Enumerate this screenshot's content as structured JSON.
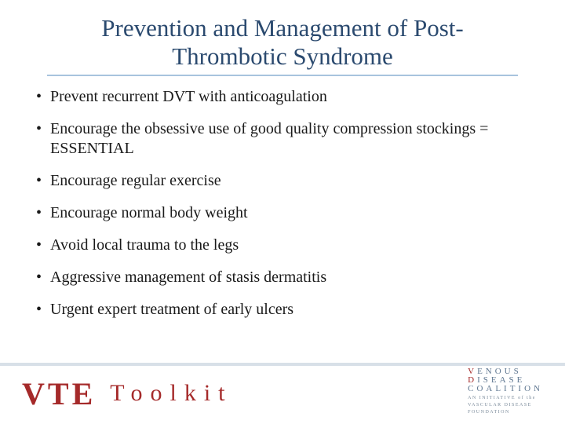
{
  "title": "Prevention and Management of Post-Thrombotic Syndrome",
  "title_color": "#2b4a6f",
  "title_fontsize": 31,
  "underline_color": "#a8c4de",
  "bullets": [
    "Prevent recurrent DVT with anticoagulation",
    "Encourage the obsessive use of good quality compression stockings = ESSENTIAL",
    "Encourage regular exercise",
    "Encourage normal body weight",
    "Avoid local trauma to the legs",
    "Aggressive management of stasis dermatitis",
    "Urgent expert treatment of early ulcers"
  ],
  "bullet_color": "#1a1a1a",
  "bullet_fontsize": 20,
  "footer": {
    "vte": "VTE",
    "toolkit": "Toolkit",
    "brand_color": "#a52a2a",
    "coalition_line1a": "V",
    "coalition_line1b": "ENOUS",
    "coalition_line2a": "D",
    "coalition_line2b": "ISEASE",
    "coalition_line3": "COALITION",
    "coalition_sub1": "AN INITIATIVE of the",
    "coalition_sub2": "VASCULAR DISEASE",
    "coalition_sub3": "FOUNDATION",
    "coalition_main_color": "#5e7690",
    "coalition_sub_color": "#7a8a9a"
  },
  "background_color": "#ffffff",
  "footer_hr_color": "#d8e0e8"
}
